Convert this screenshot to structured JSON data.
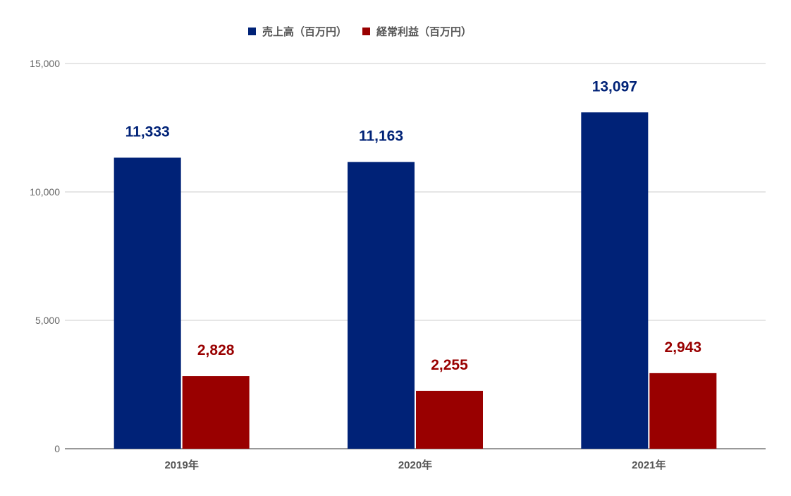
{
  "chart_data": {
    "type": "bar",
    "categories": [
      "2019年",
      "2020年",
      "2021年"
    ],
    "series": [
      {
        "name": "売上高（百万円）",
        "values": [
          11333,
          11163,
          13097
        ],
        "color": "#002277",
        "labels": [
          "11,333",
          "11,163",
          "13,097"
        ]
      },
      {
        "name": "経常利益（百万円）",
        "values": [
          2828,
          2255,
          2943
        ],
        "color": "#990000",
        "labels": [
          "2,828",
          "2,255",
          "2,943"
        ]
      }
    ],
    "ylim": [
      0,
      15000
    ],
    "yticks": [
      0,
      5000,
      10000,
      15000
    ],
    "ytick_labels": [
      "0",
      "5,000",
      "10,000",
      "15,000"
    ],
    "grid": true,
    "legend_position": "top"
  }
}
